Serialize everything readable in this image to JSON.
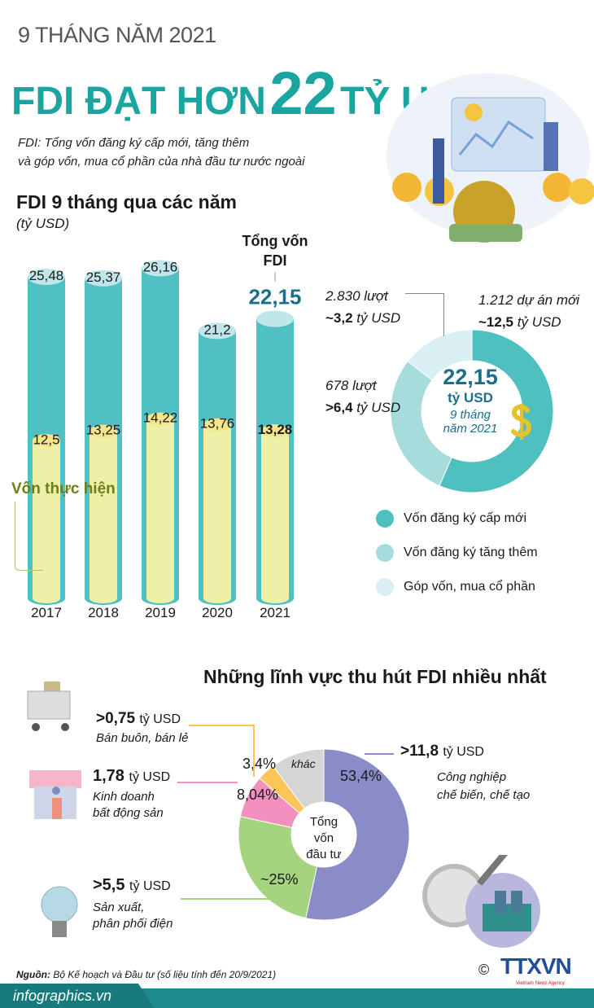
{
  "header": {
    "kicker": "9 THÁNG NĂM 2021",
    "title_part1": "FDI ĐẠT HƠN",
    "title_number": "22",
    "title_part2": "TỶ USD",
    "definition_line1": "FDI: Tổng vốn đăng ký cấp mới, tăng thêm",
    "definition_line2": "và góp vốn, mua cổ phần của nhà đầu tư nước ngoài"
  },
  "colors": {
    "brand_teal": "#1aa5a0",
    "total_bar": "#4fc0c4",
    "realized_bar": "#eef0a8",
    "realized_label": "#6b7f1a",
    "big_number": "#1b6f8a"
  },
  "chart_data": [
    {
      "type": "bar",
      "title": "FDI 9 tháng qua các năm",
      "unit": "(tỷ USD)",
      "categories": [
        "2017",
        "2018",
        "2019",
        "2020",
        "2021"
      ],
      "series": [
        {
          "name": "Tổng vốn FDI",
          "values": [
            25.48,
            25.37,
            26.16,
            21.2,
            22.15
          ],
          "labels": [
            "25,48",
            "25,37",
            "26,16",
            "21,2",
            "22,15"
          ]
        },
        {
          "name": "Vốn thực hiện",
          "values": [
            12.5,
            13.25,
            14.22,
            13.76,
            13.28
          ],
          "labels": [
            "12,5",
            "13,25",
            "14,22",
            "13,76",
            "13,28"
          ]
        }
      ],
      "annotation_total_line1": "Tổng vốn",
      "annotation_total_line2": "FDI",
      "annotation_realized": "Vốn thực hiện"
    },
    {
      "type": "pie",
      "variant": "donut",
      "center_value": "22,15",
      "center_unit": "tỷ USD",
      "center_line3": "9 tháng",
      "center_line4": "năm 2021",
      "slices": [
        {
          "name": "Vốn đăng ký cấp mới",
          "value": 12.5,
          "color": "#4fc0c0",
          "count_label": "1.212 dự án mới",
          "value_prefix": "~12,5",
          "value_unit": "tỷ USD"
        },
        {
          "name": "Vốn đăng ký tăng thêm",
          "value": 6.4,
          "color": "#a6dcdc",
          "count_label": "678 lượt",
          "value_prefix": ">6,4",
          "value_unit": "tỷ USD"
        },
        {
          "name": "Góp vốn, mua cổ phần",
          "value": 3.2,
          "color": "#d9eff3",
          "count_label": "2.830 lượt",
          "value_prefix": "~3,2",
          "value_unit": "tỷ USD"
        }
      ],
      "legend_position": "bottom"
    },
    {
      "type": "pie",
      "variant": "donut",
      "title": "Những lĩnh vực thu hút FDI nhiều nhất",
      "center_line1": "Tổng",
      "center_line2": "vốn",
      "center_line3": "đầu tư",
      "slices": [
        {
          "name": "Công nghiệp chế biến, chế tạo",
          "name_line1": "Công nghiệp",
          "name_line2": "chế biến, chế tạo",
          "value": 53.4,
          "label": "53,4%",
          "amount": ">11,8",
          "unit": "tỷ USD",
          "color": "#8a8cc8"
        },
        {
          "name": "Sản xuất, phân phối điện",
          "name_line1": "Sản xuất,",
          "name_line2": "phân phối điện",
          "value": 25,
          "label": "~25%",
          "amount": ">5,5",
          "unit": "tỷ USD",
          "color": "#a4d47e"
        },
        {
          "name": "Kinh doanh bất động sản",
          "name_line1": "Kinh doanh",
          "name_line2": "bất động sản",
          "value": 8.04,
          "label": "8,04%",
          "amount": "1,78",
          "unit": "tỷ USD",
          "color": "#f28fbf"
        },
        {
          "name": "Bán buôn, bán lẻ",
          "name_line1": "Bán buôn, bán lẻ",
          "value": 3.4,
          "label": "3,4%",
          "amount": ">0,75",
          "unit": "tỷ USD",
          "color": "#fbc55a"
        },
        {
          "name": "khác",
          "value": 10.16,
          "label": "khác",
          "color": "#d5d5d5"
        }
      ]
    }
  ],
  "footer": {
    "source_label": "Nguồn:",
    "source_text": "Bộ Kế hoạch và Đầu tư (số liệu tính đến 20/9/2021)",
    "copyright": "©",
    "agency_logo": "TTXVN",
    "agency_tagline": "Vietnam News Agency",
    "site": "infographics.vn"
  }
}
